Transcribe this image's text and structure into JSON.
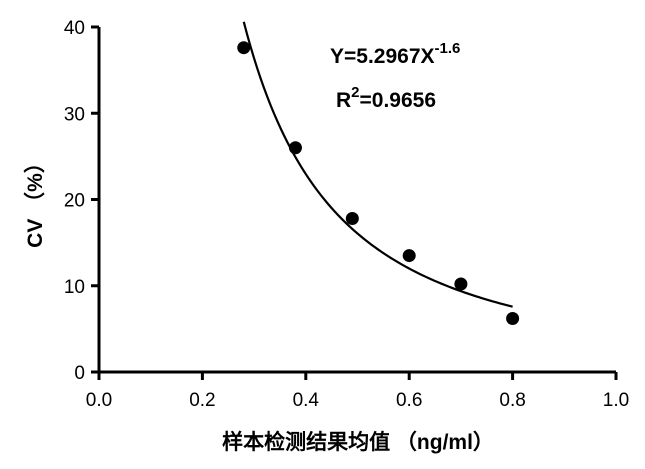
{
  "chart_data": {
    "type": "scatter",
    "x_tick_labels": [
      "0.0",
      "0.2",
      "0.4",
      "0.6",
      "0.8",
      "1.0"
    ],
    "y_tick_labels": [
      "0",
      "10",
      "20",
      "30",
      "40"
    ],
    "xlim": [
      0,
      1.0
    ],
    "ylim": [
      0,
      40
    ],
    "xlabel": "样本检测结果均值 （ng/ml）",
    "ylabel": "CV （%）",
    "points": [
      {
        "x": 0.28,
        "y": 37.6
      },
      {
        "x": 0.38,
        "y": 26.0
      },
      {
        "x": 0.49,
        "y": 17.8
      },
      {
        "x": 0.6,
        "y": 13.5
      },
      {
        "x": 0.7,
        "y": 10.2
      },
      {
        "x": 0.8,
        "y": 6.2
      }
    ],
    "fit": {
      "coefficient": 5.2967,
      "exponent": -1.6,
      "x_range": [
        0.28,
        0.8
      ],
      "equation_base": "Y=5.2967X",
      "equation_exponent": "-1.6",
      "r2_label": "R",
      "r2_sup": "2",
      "r2_value": "=0.9656"
    },
    "grid": false,
    "legend": "none",
    "colors": {
      "marks": "#000000",
      "background": "#ffffff"
    }
  }
}
